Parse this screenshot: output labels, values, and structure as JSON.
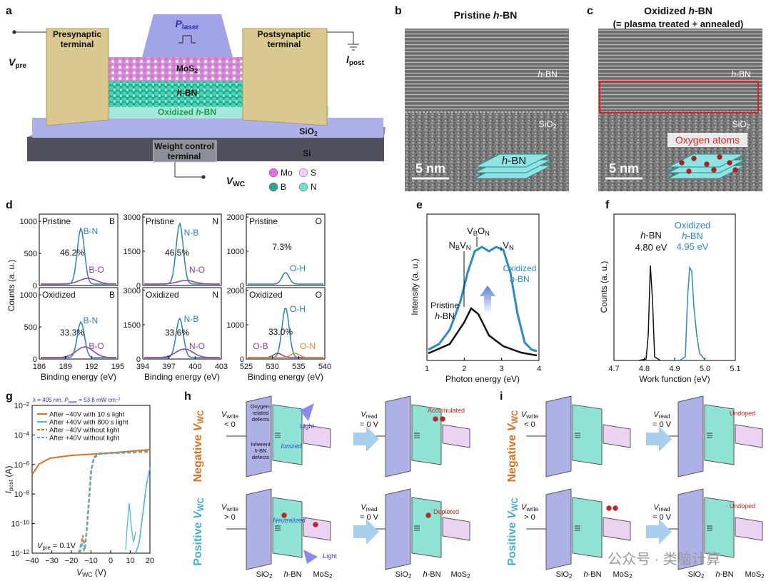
{
  "a": {
    "label": "a",
    "laser": [
      "P",
      "laser"
    ],
    "pre": [
      "Presynaptic",
      "terminal"
    ],
    "post": [
      "Postsynaptic",
      "terminal"
    ],
    "vpre": [
      "V",
      "pre"
    ],
    "ipost": [
      "I",
      "post"
    ],
    "mos2": [
      "MoS",
      "2"
    ],
    "hbn": [
      "h",
      "-BN"
    ],
    "oxhbn": [
      "Oxidized ",
      "h",
      "-BN"
    ],
    "sio2": [
      "SiO",
      "2"
    ],
    "si": "Si",
    "wct": [
      "Weight control",
      "terminal"
    ],
    "vwc": [
      "V",
      "WC"
    ],
    "legend": [
      "Mo",
      "S",
      "B",
      "N"
    ]
  },
  "b": {
    "label": "b",
    "title": [
      "Pristine ",
      "h",
      "-BN"
    ],
    "hbn": [
      "h",
      "-BN"
    ],
    "sio2": [
      "SiO",
      "2"
    ],
    "scale": "5 nm",
    "stack": [
      "h",
      "-BN"
    ]
  },
  "c": {
    "label": "c",
    "title": [
      "Oxidized ",
      "h",
      "-BN"
    ],
    "subtitle": "(= plasma treated + annealed)",
    "hbn": [
      "h",
      "-BN"
    ],
    "sio2": [
      "SiO",
      "2"
    ],
    "oxygen": "Oxygen atoms",
    "scale": "5 nm"
  },
  "d": {
    "label": "d",
    "ylabel": "Counts (a. u.)",
    "xlabel": "Binding energy (eV)",
    "plots": [
      {
        "element": "B",
        "top": {
          "state": "Pristine",
          "peaks": [
            "B-N",
            "B-O"
          ],
          "percent": "46.2%"
        },
        "bottom": {
          "state": "Oxidized",
          "peaks": [
            "B-N",
            "B-O"
          ],
          "percent": "33.3%"
        },
        "yticks": [
          "0",
          "500",
          "1000"
        ],
        "xticks": [
          "186",
          "189",
          "192",
          "195"
        ]
      },
      {
        "element": "N",
        "top": {
          "state": "Pristine",
          "peaks": [
            "N-B",
            "N-O"
          ],
          "percent": "46.5%"
        },
        "bottom": {
          "state": "Oxidized",
          "peaks": [
            "N-B",
            "N-O"
          ],
          "percent": "33.6%"
        },
        "yticks": [
          "0",
          "1500",
          "3000"
        ],
        "xticks": [
          "394",
          "397",
          "400",
          "403"
        ]
      },
      {
        "element": "O",
        "top": {
          "state": "Pristine",
          "peaks": [
            "O-H"
          ],
          "percent": "7.3%"
        },
        "bottom": {
          "state": "Oxidized",
          "peaks": [
            "O-H",
            "O-B",
            "O-N"
          ],
          "percent": "33.0%"
        },
        "yticks": [
          "0",
          "1000",
          "2000"
        ],
        "xticks": [
          "525",
          "530",
          "535",
          "540"
        ]
      }
    ]
  },
  "e": {
    "label": "e",
    "ylabel": "Intensity (a. u.)",
    "xlabel": "Photon energy (eV)",
    "xticks": [
      "1",
      "2",
      "3",
      "4"
    ],
    "nbvn": [
      "N",
      "B",
      "V",
      "N"
    ],
    "vbon": [
      "V",
      "B",
      "O",
      "N"
    ],
    "vn": [
      "V",
      "N"
    ],
    "oxidized": [
      "Oxidized",
      "h",
      "-BN"
    ],
    "pristine": [
      "Pristine",
      "h",
      "-BN"
    ]
  },
  "f": {
    "label": "f",
    "ylabel": "Counts (a. u.)",
    "xlabel": "Work function (eV)",
    "xticks": [
      "4.7",
      "4.8",
      "4.9",
      "5.0",
      "5.1"
    ],
    "hbn": [
      "h",
      "-BN"
    ],
    "hbn_value": "4.80 eV",
    "oxidized": [
      "Oxidized",
      "h",
      "-BN"
    ],
    "ox_value": "4.95 eV"
  },
  "g": {
    "label": "g",
    "condition": [
      "λ = 405 nm, ",
      "P",
      "laser",
      " = 53.8 mW cm",
      "−2"
    ],
    "legend": [
      "After −40V with 10 s light",
      "After +40V with 800 s light",
      "After −40V without light",
      "After +40V without light"
    ],
    "yticks": [
      [
        "10",
        "−2"
      ],
      [
        "10",
        "−4"
      ],
      [
        "10",
        "−6"
      ],
      [
        "10",
        "−8"
      ],
      [
        "10",
        "−10"
      ],
      [
        "10",
        "−12"
      ]
    ],
    "xticks": [
      "−40",
      "−30",
      "−20",
      "−10",
      "0",
      "10",
      "20"
    ],
    "ylabel": [
      "I",
      "post",
      " (A)"
    ],
    "xlabel": [
      "V",
      "WC",
      " (V)"
    ],
    "vpre": [
      "V",
      "pre",
      " = 0.1V"
    ]
  },
  "h": {
    "label": "h",
    "negative": [
      "Negative ",
      "V",
      "WC"
    ],
    "positive": [
      "Positive ",
      "V",
      "WC"
    ],
    "vwrite_neg": [
      "V",
      "write",
      "< 0"
    ],
    "vwrite_pos": [
      "V",
      "write",
      "> 0"
    ],
    "vread": [
      "V",
      "read",
      "= 0 V"
    ],
    "oxygen_defects": [
      "Oxygen-",
      "related",
      "defects"
    ],
    "inherent": [
      "Inherent",
      "h",
      "-BN",
      "defects"
    ],
    "light": "Light",
    "ionized": "Ionized",
    "accumulated": "Accumulated",
    "neutralized": "Neutralized",
    "depleted": "Depleted",
    "layers": [
      [
        "SiO",
        "2"
      ],
      [
        "h",
        "-BN"
      ],
      [
        "MoS",
        "2"
      ]
    ]
  },
  "i": {
    "label": "i",
    "negative": [
      "Negative ",
      "V",
      "WC"
    ],
    "positive": [
      "Positive ",
      "V",
      "WC"
    ],
    "vwrite_neg": [
      "V",
      "write",
      "< 0"
    ],
    "vwrite_pos": [
      "V",
      "write",
      "> 0"
    ],
    "vread": [
      "V",
      "read",
      "= 0 V"
    ],
    "undoped": "Undoped",
    "layers": [
      [
        "SiO",
        "2"
      ],
      [
        "h",
        "-BN"
      ],
      [
        "MoS",
        "2"
      ]
    ]
  },
  "watermark": "公众号 · 类脑计算"
}
